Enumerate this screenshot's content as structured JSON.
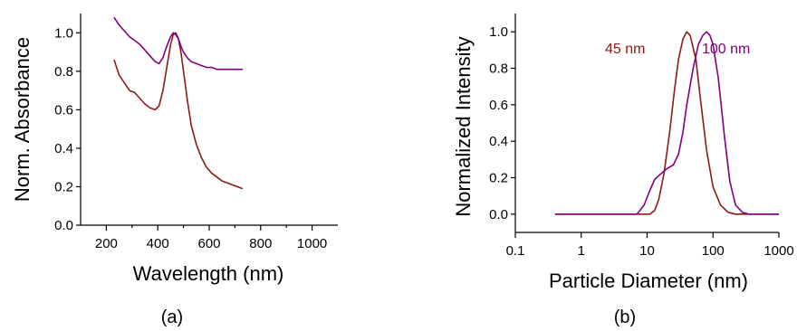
{
  "chart_data": [
    {
      "type": "line",
      "panel_label": "(a)",
      "title": "",
      "xlabel": "Wavelength (nm)",
      "ylabel": "Norm. Absorbance",
      "xlim": [
        100,
        1100
      ],
      "ylim": [
        0.0,
        1.1
      ],
      "x_ticks": [
        200,
        400,
        600,
        800,
        1000
      ],
      "x_tick_labels": [
        "200",
        "400",
        "600",
        "800",
        "1000"
      ],
      "y_ticks": [
        0.0,
        0.2,
        0.4,
        0.6,
        0.8,
        1.0
      ],
      "y_tick_labels": [
        "0.0",
        "0.2",
        "0.4",
        "0.6",
        "0.8",
        "1.0"
      ],
      "grid": false,
      "series": [
        {
          "color": "#8b1a1a",
          "x": [
            230,
            250,
            270,
            290,
            310,
            330,
            350,
            370,
            390,
            405,
            420,
            435,
            450,
            460,
            470,
            480,
            490,
            500,
            515,
            530,
            550,
            570,
            590,
            610,
            630,
            650,
            670,
            690,
            710,
            730
          ],
          "y": [
            0.86,
            0.78,
            0.74,
            0.7,
            0.69,
            0.66,
            0.63,
            0.61,
            0.6,
            0.62,
            0.7,
            0.82,
            0.94,
            0.99,
            1.0,
            0.97,
            0.9,
            0.8,
            0.65,
            0.52,
            0.42,
            0.35,
            0.3,
            0.27,
            0.25,
            0.23,
            0.22,
            0.21,
            0.2,
            0.19
          ]
        },
        {
          "color": "#800080",
          "x": [
            230,
            250,
            270,
            290,
            310,
            330,
            350,
            370,
            390,
            405,
            420,
            435,
            450,
            460,
            470,
            480,
            490,
            500,
            515,
            530,
            550,
            570,
            590,
            610,
            630,
            650,
            670,
            690,
            710,
            730
          ],
          "y": [
            1.08,
            1.04,
            1.01,
            0.98,
            0.96,
            0.94,
            0.91,
            0.88,
            0.85,
            0.84,
            0.87,
            0.93,
            0.98,
            1.0,
            0.99,
            0.97,
            0.93,
            0.9,
            0.87,
            0.85,
            0.84,
            0.83,
            0.82,
            0.82,
            0.81,
            0.81,
            0.81,
            0.81,
            0.81,
            0.81
          ]
        }
      ]
    },
    {
      "type": "line",
      "panel_label": "(b)",
      "title": "",
      "xlabel": "Particle Diameter (nm)",
      "ylabel": "Normalized Intensity",
      "x_scale": "log",
      "xlim": [
        0.1,
        1000
      ],
      "ylim": [
        -0.1,
        1.1
      ],
      "x_ticks": [
        0.1,
        1,
        10,
        100,
        1000
      ],
      "x_tick_labels": [
        "0.1",
        "1",
        "10",
        "100",
        "1000"
      ],
      "y_ticks": [
        0.0,
        0.2,
        0.4,
        0.6,
        0.8,
        1.0
      ],
      "y_tick_labels": [
        "0.0",
        "0.2",
        "0.4",
        "0.6",
        "0.8",
        "1.0"
      ],
      "grid": false,
      "annotations": [
        {
          "text": "45 nm",
          "color": "#8b1a1a"
        },
        {
          "text": "100 nm",
          "color": "#800080"
        }
      ],
      "series": [
        {
          "color": "#8b1a1a",
          "x": [
            0.4,
            5,
            9,
            11,
            13,
            15,
            18,
            22,
            26,
            30,
            35,
            40,
            45,
            55,
            65,
            80,
            100,
            130,
            170,
            220,
            300,
            400,
            600,
            1000
          ],
          "y": [
            0.0,
            0.0,
            0.0,
            0.0,
            0.02,
            0.08,
            0.22,
            0.45,
            0.68,
            0.85,
            0.96,
            1.0,
            0.98,
            0.85,
            0.62,
            0.35,
            0.15,
            0.05,
            0.01,
            0.0,
            0.0,
            0.0,
            0.0,
            0.0
          ]
        },
        {
          "color": "#800080",
          "x": [
            0.4,
            5,
            7,
            9,
            11,
            13,
            16,
            20,
            25,
            30,
            35,
            40,
            50,
            60,
            70,
            80,
            90,
            100,
            120,
            150,
            180,
            220,
            280,
            350,
            500,
            1000
          ],
          "y": [
            0.0,
            0.0,
            0.0,
            0.05,
            0.13,
            0.19,
            0.22,
            0.25,
            0.27,
            0.33,
            0.45,
            0.6,
            0.8,
            0.93,
            0.98,
            1.0,
            0.98,
            0.93,
            0.75,
            0.42,
            0.18,
            0.05,
            0.01,
            0.0,
            0.0,
            0.0
          ]
        }
      ]
    }
  ]
}
